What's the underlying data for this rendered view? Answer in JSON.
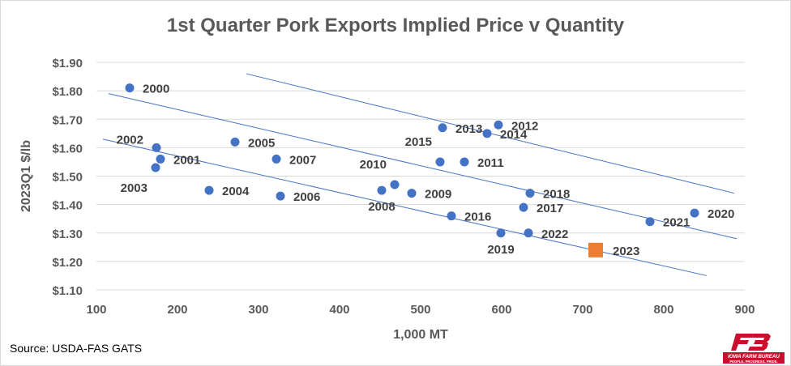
{
  "title": "1st Quarter Pork Exports Implied Price v Quantity",
  "source": "Source: USDA-FAS GATS",
  "logo": {
    "text": "IOWA FARM BUREAU",
    "tagline": "PEOPLE. PROGRESS. PRIDE.",
    "mark": "FB",
    "color": "#c8102e"
  },
  "chart_data": {
    "type": "scatter",
    "title": "1st Quarter Pork Exports Implied Price v Quantity",
    "xlabel": "1,000 MT",
    "ylabel": "2023Q1 $/lb",
    "xlim": [
      100,
      900
    ],
    "ylim": [
      1.1,
      1.9
    ],
    "x_ticks": [
      100,
      200,
      300,
      400,
      500,
      600,
      700,
      800,
      900
    ],
    "y_ticks": [
      1.1,
      1.2,
      1.3,
      1.4,
      1.5,
      1.6,
      1.7,
      1.8,
      1.9
    ],
    "x_tick_labels": [
      "100",
      "200",
      "300",
      "400",
      "500",
      "600",
      "700",
      "800",
      "900"
    ],
    "y_tick_labels": [
      "$1.10",
      "$1.20",
      "$1.30",
      "$1.40",
      "$1.50",
      "$1.60",
      "$1.70",
      "$1.80",
      "$1.90"
    ],
    "grid": "horizontal",
    "colors": {
      "points": "#4472c4",
      "highlight": "#ed7d31",
      "trend": "#4472c4",
      "grid": "#d9d9d9",
      "text": "#595959",
      "label": "#404040"
    },
    "points": [
      {
        "label": "2000",
        "x": 141,
        "y": 1.81,
        "label_pos": "right"
      },
      {
        "label": "2001",
        "x": 179,
        "y": 1.56,
        "label_pos": "right"
      },
      {
        "label": "2002",
        "x": 174,
        "y": 1.6,
        "label_pos": "left"
      },
      {
        "label": "2003",
        "x": 173,
        "y": 1.53,
        "label_pos": "below-left"
      },
      {
        "label": "2004",
        "x": 239,
        "y": 1.45,
        "label_pos": "right"
      },
      {
        "label": "2005",
        "x": 271,
        "y": 1.62,
        "label_pos": "right"
      },
      {
        "label": "2006",
        "x": 327,
        "y": 1.43,
        "label_pos": "right"
      },
      {
        "label": "2007",
        "x": 322,
        "y": 1.56,
        "label_pos": "right"
      },
      {
        "label": "2008",
        "x": 452,
        "y": 1.45,
        "label_pos": "below"
      },
      {
        "label": "2009",
        "x": 489,
        "y": 1.44,
        "label_pos": "right"
      },
      {
        "label": "2010",
        "x": 468,
        "y": 1.47,
        "label_pos": "above-left"
      },
      {
        "label": "2011",
        "x": 554,
        "y": 1.55,
        "label_pos": "right"
      },
      {
        "label": "2012",
        "x": 596,
        "y": 1.68,
        "label_pos": "right"
      },
      {
        "label": "2013",
        "x": 527,
        "y": 1.67,
        "label_pos": "right"
      },
      {
        "label": "2014",
        "x": 582,
        "y": 1.65,
        "label_pos": "right"
      },
      {
        "label": "2015",
        "x": 524,
        "y": 1.55,
        "label_pos": "above-left"
      },
      {
        "label": "2016",
        "x": 538,
        "y": 1.36,
        "label_pos": "right"
      },
      {
        "label": "2017",
        "x": 627,
        "y": 1.39,
        "label_pos": "right"
      },
      {
        "label": "2018",
        "x": 635,
        "y": 1.44,
        "label_pos": "right"
      },
      {
        "label": "2019",
        "x": 599,
        "y": 1.3,
        "label_pos": "below"
      },
      {
        "label": "2020",
        "x": 838,
        "y": 1.37,
        "label_pos": "right"
      },
      {
        "label": "2021",
        "x": 783,
        "y": 1.34,
        "label_pos": "right"
      },
      {
        "label": "2022",
        "x": 633,
        "y": 1.3,
        "label_pos": "right"
      }
    ],
    "highlight": {
      "label": "2023",
      "x": 716,
      "y": 1.24,
      "marker": "square"
    },
    "trend_lines": [
      {
        "x": [
          285,
          887
        ],
        "y": [
          1.86,
          1.44
        ]
      },
      {
        "x": [
          115,
          890
        ],
        "y": [
          1.79,
          1.28
        ]
      },
      {
        "x": [
          108,
          853
        ],
        "y": [
          1.63,
          1.15
        ]
      }
    ]
  }
}
